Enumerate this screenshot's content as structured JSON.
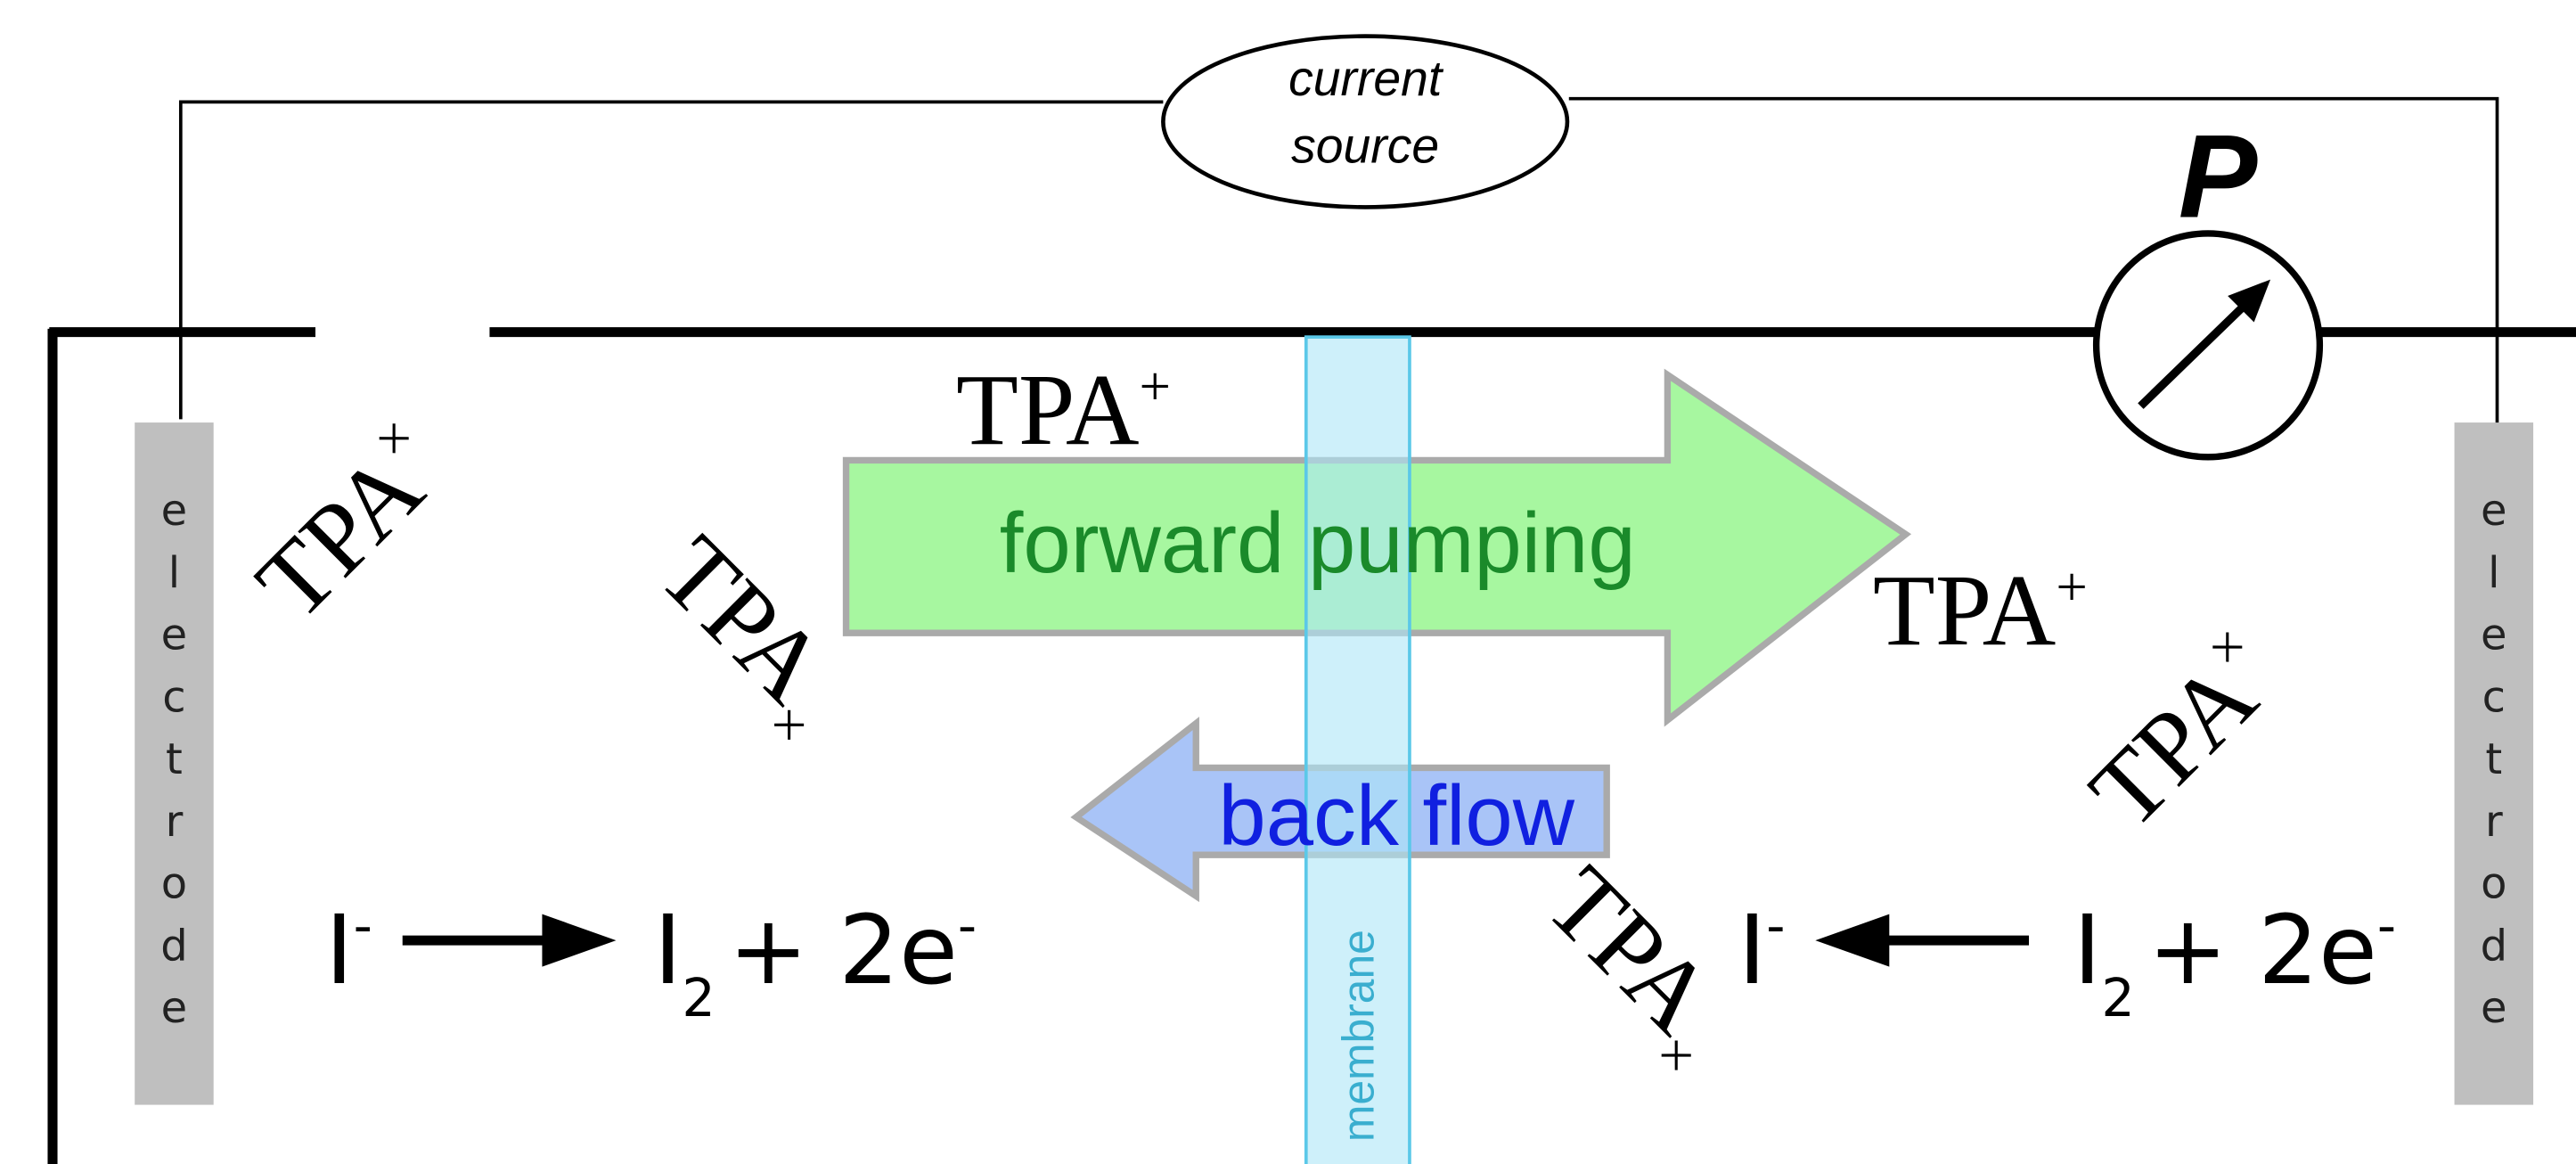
{
  "current_source": {
    "line1": "current",
    "line2": "source"
  },
  "meter_label": "P",
  "electrodes": [
    {
      "label": "electrode"
    },
    {
      "label": "electrode"
    }
  ],
  "membrane": "membrane",
  "arrows": {
    "forward": "forward pumping",
    "back": "back flow"
  },
  "ions": [
    {
      "name": "TPA",
      "charge": "+"
    },
    {
      "name": "TPA",
      "charge": "+"
    },
    {
      "name": "TPA",
      "charge": "×"
    },
    {
      "name": "TPA",
      "charge": "×"
    },
    {
      "name": "TPA",
      "charge": "×"
    },
    {
      "name": "TPA",
      "charge": "×"
    }
  ],
  "reactions": [
    {
      "reactant": "I",
      "reactant_charge": "-",
      "product": "I",
      "product_sub": "2",
      "plus": "+ 2e",
      "electron_charge": "-"
    },
    {
      "reactant": "I",
      "reactant_charge": "-",
      "product": "I",
      "product_sub": "2",
      "plus": "+ 2e",
      "electron_charge": "-"
    }
  ]
}
